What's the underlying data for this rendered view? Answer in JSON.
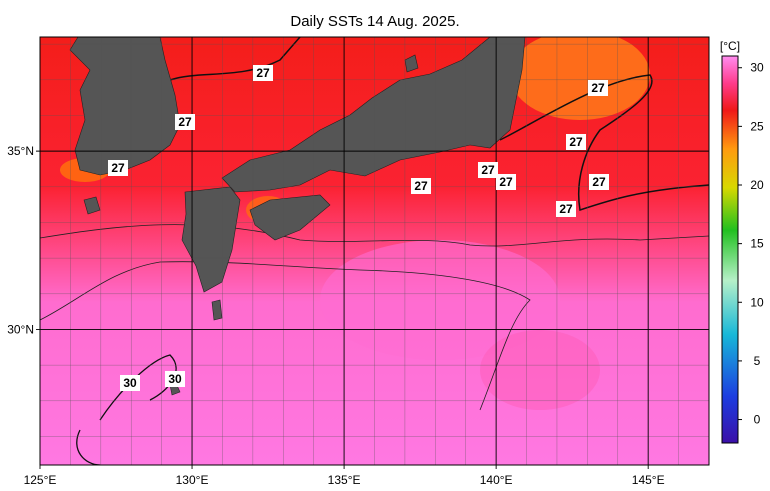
{
  "title": "Daily SSTs 14 Aug. 2025.",
  "map": {
    "lon_lim": [
      125,
      147
    ],
    "lat_lim": [
      26.2,
      38.2
    ],
    "lon_ticks": [
      {
        "value": 125,
        "label": "125°E"
      },
      {
        "value": 130,
        "label": "130°E"
      },
      {
        "value": 135,
        "label": "135°E"
      },
      {
        "value": 140,
        "label": "140°E"
      },
      {
        "value": 145,
        "label": "145°E"
      }
    ],
    "lat_ticks": [
      {
        "value": 30,
        "label": "30°N"
      },
      {
        "value": 35,
        "label": "35°N"
      }
    ]
  },
  "colorbar": {
    "unit": "[°C]",
    "limits": [
      -2,
      31
    ],
    "ticks": [
      0,
      5,
      10,
      15,
      20,
      25,
      30
    ]
  },
  "contour_labels": [
    "27",
    "27",
    "27",
    "27",
    "27",
    "27",
    "27",
    "27",
    "27",
    "27",
    "30",
    "30"
  ]
}
